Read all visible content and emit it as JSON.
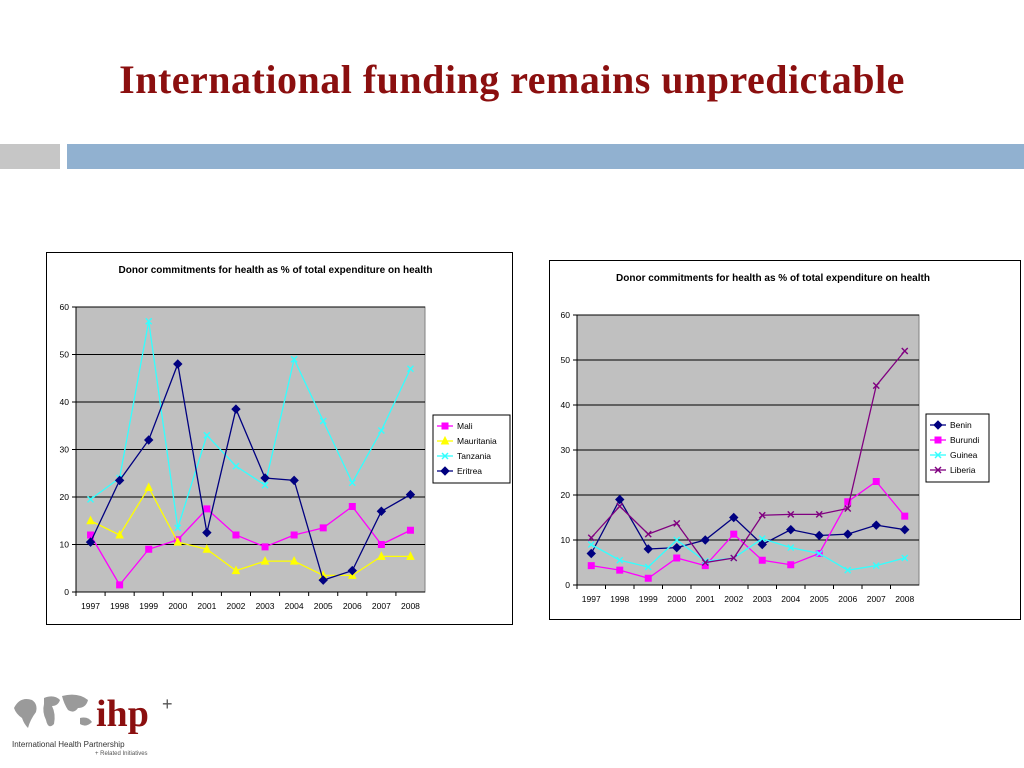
{
  "slide": {
    "title": "International funding remains unpredictable"
  },
  "logo": {
    "mark": "ihp",
    "plus": "+",
    "caption": "International Health Partnership",
    "subcaption": "+ Related Initiatives"
  },
  "chart_data": [
    {
      "type": "line",
      "title": "Donor commitments for health as % of total expenditure on health",
      "xlabel": "",
      "ylabel": "",
      "ylim": [
        0,
        60
      ],
      "yticks": [
        0,
        10,
        20,
        30,
        40,
        50,
        60
      ],
      "grid": true,
      "plot_background": "#c0c0c0",
      "legend_position": "right",
      "categories": [
        "1997",
        "1998",
        "1999",
        "2000",
        "2001",
        "2002",
        "2003",
        "2004",
        "2005",
        "2006",
        "2007",
        "2008"
      ],
      "series": [
        {
          "name": "Mali",
          "color": "#ff00ff",
          "marker": "square",
          "values": [
            12,
            1.5,
            9,
            11,
            17.5,
            12,
            9.5,
            12,
            13.5,
            18,
            10,
            13
          ]
        },
        {
          "name": "Mauritania",
          "color": "#ffff00",
          "marker": "triangle",
          "values": [
            15,
            12,
            22,
            10.5,
            9,
            4.5,
            6.5,
            6.5,
            3.5,
            3.5,
            7.5,
            7.5
          ]
        },
        {
          "name": "Tanzania",
          "color": "#33ffff",
          "marker": "x",
          "values": [
            19.5,
            24,
            57,
            13.5,
            33,
            26.5,
            22.5,
            49,
            36,
            23,
            34,
            47
          ]
        },
        {
          "name": "Eritrea",
          "color": "#000080",
          "marker": "diamond",
          "values": [
            10.5,
            23.5,
            32,
            48,
            12.5,
            38.5,
            24,
            23.5,
            2.5,
            4.5,
            17,
            20.5
          ]
        }
      ]
    },
    {
      "type": "line",
      "title": "Donor commitments for health as % of total expenditure on health",
      "xlabel": "",
      "ylabel": "",
      "ylim": [
        0,
        60
      ],
      "yticks": [
        0,
        10,
        20,
        30,
        40,
        50,
        60
      ],
      "grid": true,
      "plot_background": "#c0c0c0",
      "legend_position": "right",
      "categories": [
        "1997",
        "1998",
        "1999",
        "2000",
        "2001",
        "2002",
        "2003",
        "2004",
        "2005",
        "2006",
        "2007",
        "2008"
      ],
      "series": [
        {
          "name": "Benin",
          "color": "#000080",
          "marker": "diamond",
          "values": [
            7,
            19,
            8,
            8.3,
            10,
            15,
            9,
            12.3,
            11,
            11.3,
            13.3,
            12.3
          ]
        },
        {
          "name": "Burundi",
          "color": "#ff00ff",
          "marker": "square",
          "values": [
            4.3,
            3.3,
            1.5,
            6,
            4.3,
            11.3,
            5.5,
            4.5,
            7,
            18.5,
            23,
            15.3
          ]
        },
        {
          "name": "Guinea",
          "color": "#33ffff",
          "marker": "x",
          "values": [
            9,
            5.5,
            4,
            10,
            5.3,
            6,
            10.3,
            8.3,
            7,
            3.3,
            4.3,
            6
          ]
        },
        {
          "name": "Liberia",
          "color": "#800080",
          "marker": "x",
          "values": [
            10.5,
            17.5,
            11.3,
            13.7,
            5,
            6,
            15.5,
            15.7,
            15.7,
            17,
            44.3,
            52
          ]
        }
      ]
    }
  ]
}
